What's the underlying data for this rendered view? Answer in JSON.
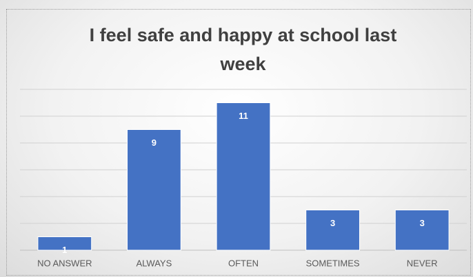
{
  "chart_data": {
    "type": "bar",
    "title": "I feel safe and happy at school last week",
    "categories": [
      "NO ANSWER",
      "ALWAYS",
      "OFTEN",
      "SOMETIMES",
      "NEVER"
    ],
    "values": [
      1,
      9,
      11,
      3,
      3
    ],
    "color": "#4472c4",
    "ylim": [
      0,
      12
    ],
    "yticks": [
      0,
      2,
      4,
      6,
      8,
      10,
      12
    ],
    "grid": true
  }
}
